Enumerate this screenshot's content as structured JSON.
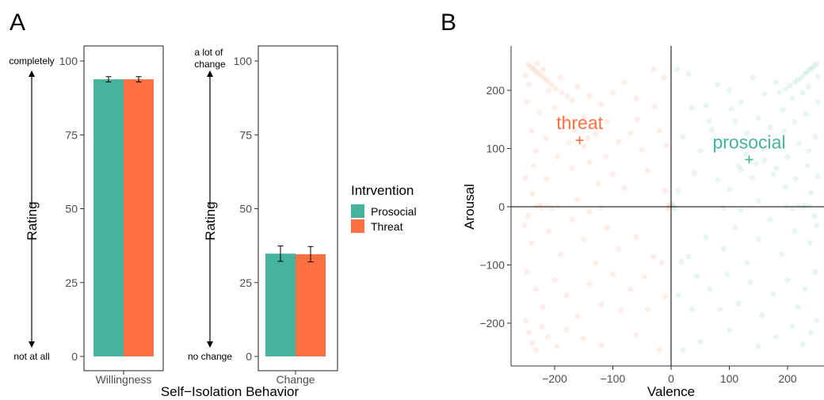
{
  "panels": {
    "a_letter": "A",
    "b_letter": "B"
  },
  "legend": {
    "title": "Intrvention",
    "items": [
      {
        "label": "Prosocial",
        "color": "#45b39d"
      },
      {
        "label": "Threat",
        "color": "#ff7043"
      }
    ]
  },
  "chart_data": [
    {
      "type": "bar",
      "categories": [
        "Willingness"
      ],
      "series": [
        {
          "name": "Prosocial",
          "values": [
            93.8
          ],
          "error": [
            0.9
          ]
        },
        {
          "name": "Threat",
          "values": [
            93.8
          ],
          "error": [
            0.9
          ]
        }
      ],
      "ylabel": "Rating",
      "ylim": [
        0,
        100
      ],
      "yticks": [
        0,
        25,
        50,
        75,
        100
      ],
      "scale_top_label": "completely",
      "scale_bottom_label": "not at all"
    },
    {
      "type": "bar",
      "categories": [
        "Change"
      ],
      "series": [
        {
          "name": "Prosocial",
          "values": [
            34.8
          ],
          "error": [
            2.6
          ]
        },
        {
          "name": "Threat",
          "values": [
            34.6
          ],
          "error": [
            2.6
          ]
        }
      ],
      "ylabel": "Rating",
      "ylim": [
        0,
        100
      ],
      "yticks": [
        0,
        25,
        50,
        75,
        100
      ],
      "scale_top_label": "a lot of change",
      "scale_bottom_label": "no change"
    },
    {
      "type": "scatter",
      "xlabel": "Valence",
      "ylabel": "Arousal",
      "xlim": [
        -260,
        260
      ],
      "ylim": [
        -260,
        260
      ],
      "xticks": [
        -200,
        -100,
        0,
        100,
        200
      ],
      "yticks": [
        -200,
        -100,
        0,
        100,
        200
      ],
      "reference_lines": {
        "x": 0,
        "y": 0
      },
      "point_opacity": 0.12,
      "series": [
        {
          "name": "threat",
          "color": "#ff7043",
          "centroid": [
            -157,
            114
          ],
          "points": [
            [
              -245,
              244
            ],
            [
              -240,
              240
            ],
            [
              -236,
              236
            ],
            [
              -232,
              232
            ],
            [
              -228,
              229
            ],
            [
              -222,
              224
            ],
            [
              -217,
              220
            ],
            [
              -212,
              216
            ],
            [
              -205,
              210
            ],
            [
              -198,
              203
            ],
            [
              -188,
              196
            ],
            [
              -178,
              190
            ],
            [
              -170,
              183
            ],
            [
              -250,
              225
            ],
            [
              -230,
              246
            ],
            [
              -244,
              210
            ],
            [
              -220,
              236
            ],
            [
              -210,
              200
            ],
            [
              -190,
              222
            ],
            [
              -160,
              206
            ],
            [
              -140,
              190
            ],
            [
              -120,
              176
            ],
            [
              -100,
              196
            ],
            [
              -80,
              214
            ],
            [
              -60,
              186
            ],
            [
              -30,
              236
            ],
            [
              -12,
              222
            ],
            [
              -248,
              180
            ],
            [
              -226,
              162
            ],
            [
              -200,
              170
            ],
            [
              -180,
              150
            ],
            [
              -150,
              154
            ],
            [
              -130,
              124
            ],
            [
              -110,
              146
            ],
            [
              -90,
              112
            ],
            [
              -70,
              126
            ],
            [
              -50,
              98
            ],
            [
              -20,
              130
            ],
            [
              -240,
              130
            ],
            [
              -232,
              96
            ],
            [
              -215,
              118
            ],
            [
              -195,
              86
            ],
            [
              -170,
              66
            ],
            [
              -140,
              76
            ],
            [
              -125,
              40
            ],
            [
              -100,
              56
            ],
            [
              -80,
              32
            ],
            [
              -40,
              62
            ],
            [
              -10,
              28
            ],
            [
              -250,
              50
            ],
            [
              -238,
              22
            ],
            [
              -226,
              2
            ],
            [
              -232,
              0
            ],
            [
              -222,
              -1
            ],
            [
              -214,
              1
            ],
            [
              -205,
              -2
            ],
            [
              -194,
              0
            ],
            [
              -160,
              12
            ],
            [
              -140,
              -8
            ],
            [
              -120,
              -2
            ],
            [
              -4,
              0
            ],
            [
              -2,
              4
            ],
            [
              -6,
              -3
            ],
            [
              -252,
              -32
            ],
            [
              -240,
              -62
            ],
            [
              -210,
              -42
            ],
            [
              -190,
              -82
            ],
            [
              -170,
              -22
            ],
            [
              -150,
              -56
            ],
            [
              -130,
              -96
            ],
            [
              -110,
              -36
            ],
            [
              -90,
              -72
            ],
            [
              -60,
              -52
            ],
            [
              -30,
              -86
            ],
            [
              -248,
              -112
            ],
            [
              -232,
              -142
            ],
            [
              -220,
              -172
            ],
            [
              -200,
              -126
            ],
            [
              -180,
              -152
            ],
            [
              -160,
              -188
            ],
            [
              -140,
              -132
            ],
            [
              -120,
              -168
            ],
            [
              -100,
              -116
            ],
            [
              -70,
              -142
            ],
            [
              -40,
              -176
            ],
            [
              -10,
              -154
            ],
            [
              -250,
              -196
            ],
            [
              -244,
              -216
            ],
            [
              -238,
              -234
            ],
            [
              -232,
              -246
            ],
            [
              -222,
              -206
            ],
            [
              -212,
              -224
            ],
            [
              -196,
              -240
            ],
            [
              -180,
              -212
            ],
            [
              -150,
              -226
            ],
            [
              -120,
              -238
            ],
            [
              -60,
              -220
            ],
            [
              -20,
              -246
            ],
            [
              -176,
              110
            ],
            [
              -150,
              104
            ],
            [
              -166,
              132
            ],
            [
              -143,
              118
            ],
            [
              -58,
              150
            ],
            [
              -28,
              172
            ],
            [
              -8,
              106
            ],
            [
              -246,
              -16
            ],
            [
              -236,
              70
            ],
            [
              -214,
              48
            ],
            [
              -112,
              86
            ],
            [
              -86,
              -178
            ],
            [
              -46,
              -120
            ],
            [
              -16,
              -96
            ]
          ]
        },
        {
          "name": "prosocial",
          "color": "#45b39d",
          "centroid": [
            134,
            81
          ],
          "points": [
            [
              250,
              246
            ],
            [
              246,
              242
            ],
            [
              242,
              238
            ],
            [
              238,
              236
            ],
            [
              234,
              232
            ],
            [
              230,
              228
            ],
            [
              224,
              222
            ],
            [
              218,
              218
            ],
            [
              212,
              214
            ],
            [
              204,
              208
            ],
            [
              196,
              202
            ],
            [
              186,
              196
            ],
            [
              252,
              224
            ],
            [
              236,
              206
            ],
            [
              226,
              196
            ],
            [
              208,
              186
            ],
            [
              180,
              214
            ],
            [
              160,
              194
            ],
            [
              140,
              222
            ],
            [
              120,
              180
            ],
            [
              100,
              200
            ],
            [
              80,
              210
            ],
            [
              60,
              174
            ],
            [
              30,
              228
            ],
            [
              10,
              236
            ],
            [
              252,
              180
            ],
            [
              232,
              160
            ],
            [
              212,
              146
            ],
            [
              192,
              166
            ],
            [
              170,
              136
            ],
            [
              150,
              152
            ],
            [
              130,
              126
            ],
            [
              110,
              146
            ],
            [
              90,
              112
            ],
            [
              70,
              132
            ],
            [
              50,
              96
            ],
            [
              20,
              120
            ],
            [
              248,
              120
            ],
            [
              236,
              96
            ],
            [
              220,
              108
            ],
            [
              200,
              86
            ],
            [
              180,
              66
            ],
            [
              160,
              80
            ],
            [
              140,
              50
            ],
            [
              120,
              64
            ],
            [
              100,
              30
            ],
            [
              80,
              46
            ],
            [
              40,
              58
            ],
            [
              12,
              26
            ],
            [
              252,
              52
            ],
            [
              240,
              24
            ],
            [
              230,
              2
            ],
            [
              238,
              0
            ],
            [
              226,
              -1
            ],
            [
              218,
              1
            ],
            [
              208,
              -2
            ],
            [
              198,
              0
            ],
            [
              150,
              10
            ],
            [
              120,
              -6
            ],
            [
              90,
              -2
            ],
            [
              4,
              0
            ],
            [
              2,
              4
            ],
            [
              6,
              -3
            ],
            [
              250,
              -32
            ],
            [
              238,
              -62
            ],
            [
              212,
              -42
            ],
            [
              190,
              -82
            ],
            [
              170,
              -22
            ],
            [
              150,
              -56
            ],
            [
              130,
              -96
            ],
            [
              110,
              -36
            ],
            [
              90,
              -72
            ],
            [
              60,
              -52
            ],
            [
              30,
              -86
            ],
            [
              248,
              -112
            ],
            [
              230,
              -142
            ],
            [
              218,
              -172
            ],
            [
              200,
              -126
            ],
            [
              176,
              -150
            ],
            [
              156,
              -186
            ],
            [
              136,
              -130
            ],
            [
              116,
              -166
            ],
            [
              96,
              -116
            ],
            [
              66,
              -142
            ],
            [
              36,
              -176
            ],
            [
              12,
              -152
            ],
            [
              250,
              -196
            ],
            [
              240,
              -216
            ],
            [
              226,
              -236
            ],
            [
              208,
              -206
            ],
            [
              180,
              -224
            ],
            [
              150,
              -240
            ],
            [
              100,
              -212
            ],
            [
              50,
              -232
            ],
            [
              20,
              -246
            ],
            [
              128,
              90
            ],
            [
              146,
              74
            ],
            [
              116,
              70
            ],
            [
              158,
              100
            ],
            [
              176,
              56
            ],
            [
              196,
              34
            ],
            [
              66,
              148
            ],
            [
              36,
              170
            ],
            [
              246,
              -16
            ],
            [
              234,
              70
            ],
            [
              214,
              48
            ],
            [
              104,
              168
            ],
            [
              84,
              -176
            ],
            [
              44,
              -120
            ],
            [
              18,
              -94
            ],
            [
              194,
              130
            ]
          ]
        }
      ]
    }
  ]
}
